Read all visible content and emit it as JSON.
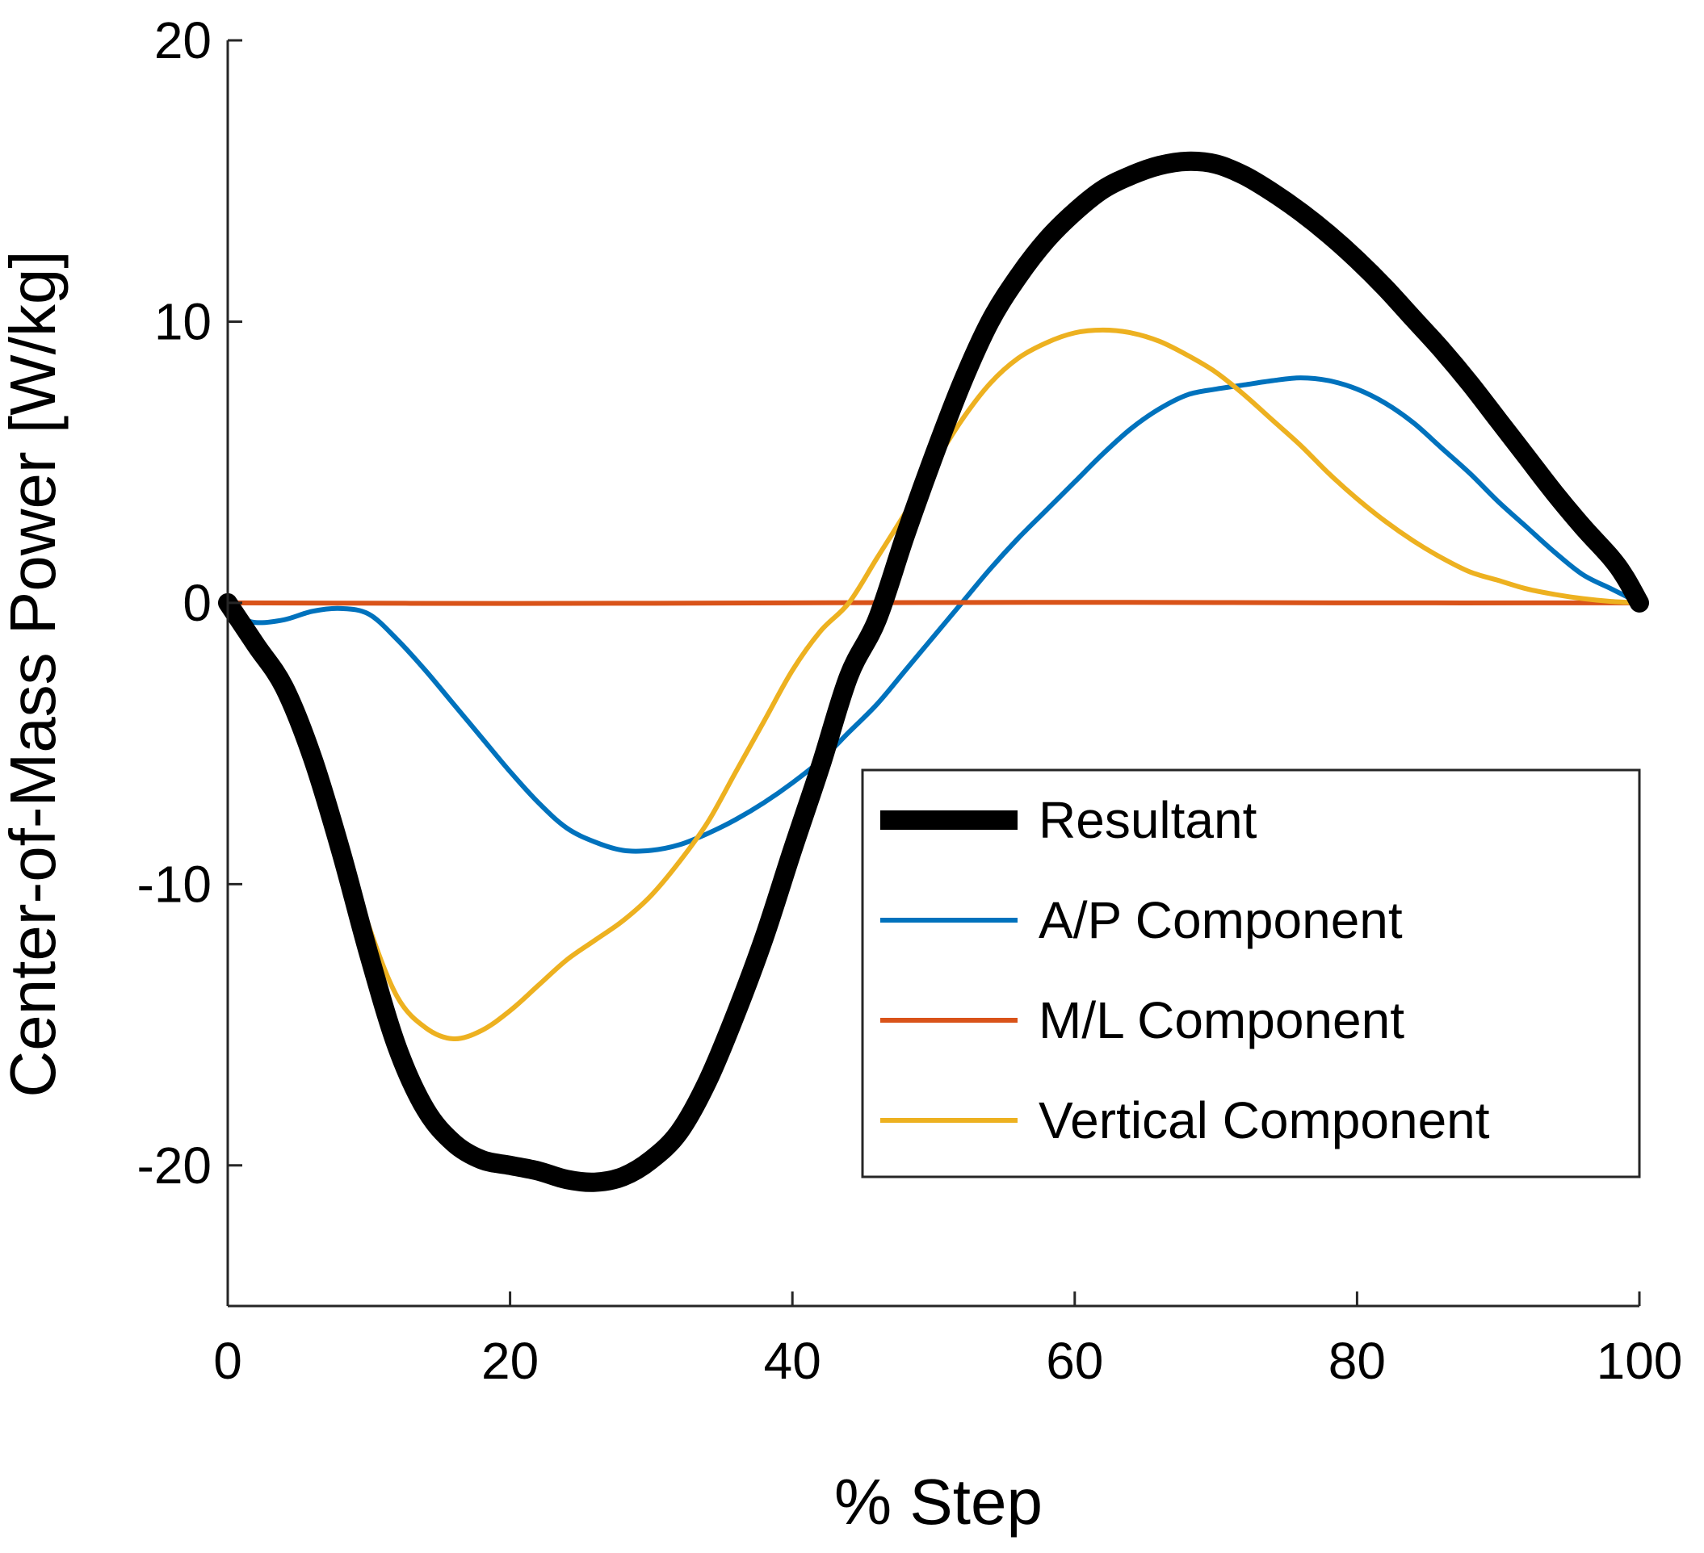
{
  "chart_data": {
    "type": "line",
    "title": "",
    "xlabel": "% Step",
    "ylabel": "Center-of-Mass Power [W/kg]",
    "xlim": [
      0,
      100
    ],
    "ylim": [
      -25,
      20
    ],
    "xticks": [
      0,
      20,
      40,
      60,
      80,
      100
    ],
    "yticks": [
      -20,
      -10,
      0,
      10,
      20
    ],
    "xtick_labels": [
      "0",
      "20",
      "40",
      "60",
      "80",
      "100"
    ],
    "ytick_labels": [
      "-20",
      "-10",
      "0",
      "10",
      "20"
    ],
    "grid": false,
    "legend_position": "bottom-right",
    "series": [
      {
        "name": "Resultant",
        "color": "#000000",
        "style": "thick",
        "points": [
          [
            0,
            0
          ],
          [
            2,
            -1.5
          ],
          [
            4,
            -3
          ],
          [
            6,
            -5.5
          ],
          [
            8,
            -8.8
          ],
          [
            10,
            -12.5
          ],
          [
            12,
            -15.8
          ],
          [
            14,
            -18
          ],
          [
            16,
            -19.2
          ],
          [
            18,
            -19.8
          ],
          [
            20,
            -20
          ],
          [
            22,
            -20.2
          ],
          [
            24,
            -20.5
          ],
          [
            26,
            -20.6
          ],
          [
            28,
            -20.4
          ],
          [
            30,
            -19.8
          ],
          [
            32,
            -18.8
          ],
          [
            34,
            -17
          ],
          [
            36,
            -14.6
          ],
          [
            38,
            -11.9
          ],
          [
            40,
            -8.8
          ],
          [
            42,
            -5.8
          ],
          [
            44,
            -2.6
          ],
          [
            46,
            -0.6
          ],
          [
            48,
            2.4
          ],
          [
            50,
            5.2
          ],
          [
            52,
            7.8
          ],
          [
            54,
            10
          ],
          [
            56,
            11.6
          ],
          [
            58,
            12.9
          ],
          [
            60,
            13.9
          ],
          [
            62,
            14.7
          ],
          [
            64,
            15.2
          ],
          [
            66,
            15.55
          ],
          [
            68,
            15.7
          ],
          [
            70,
            15.6
          ],
          [
            72,
            15.2
          ],
          [
            74,
            14.6
          ],
          [
            76,
            13.9
          ],
          [
            78,
            13.1
          ],
          [
            80,
            12.2
          ],
          [
            82,
            11.2
          ],
          [
            84,
            10.1
          ],
          [
            86,
            9
          ],
          [
            88,
            7.8
          ],
          [
            90,
            6.5
          ],
          [
            92,
            5.2
          ],
          [
            94,
            3.9
          ],
          [
            96,
            2.7
          ],
          [
            98,
            1.6
          ],
          [
            99,
            0.9
          ],
          [
            100,
            0
          ]
        ]
      },
      {
        "name": "A/P Component",
        "color": "#0072BD",
        "style": "thin",
        "points": [
          [
            0,
            0
          ],
          [
            1,
            -0.5
          ],
          [
            2,
            -0.7
          ],
          [
            4,
            -0.6
          ],
          [
            6,
            -0.3
          ],
          [
            8,
            -0.2
          ],
          [
            10,
            -0.4
          ],
          [
            12,
            -1.3
          ],
          [
            14,
            -2.4
          ],
          [
            16,
            -3.6
          ],
          [
            18,
            -4.8
          ],
          [
            20,
            -6
          ],
          [
            22,
            -7.1
          ],
          [
            24,
            -8
          ],
          [
            26,
            -8.5
          ],
          [
            28,
            -8.8
          ],
          [
            30,
            -8.8
          ],
          [
            32,
            -8.6
          ],
          [
            34,
            -8.2
          ],
          [
            36,
            -7.7
          ],
          [
            38,
            -7.1
          ],
          [
            40,
            -6.4
          ],
          [
            42,
            -5.6
          ],
          [
            44,
            -4.6
          ],
          [
            46,
            -3.6
          ],
          [
            48,
            -2.4
          ],
          [
            50,
            -1.2
          ],
          [
            52,
            0
          ],
          [
            54,
            1.2
          ],
          [
            56,
            2.3
          ],
          [
            58,
            3.3
          ],
          [
            60,
            4.3
          ],
          [
            62,
            5.3
          ],
          [
            64,
            6.2
          ],
          [
            66,
            6.9
          ],
          [
            68,
            7.4
          ],
          [
            70,
            7.6
          ],
          [
            72,
            7.75
          ],
          [
            74,
            7.9
          ],
          [
            76,
            8
          ],
          [
            78,
            7.9
          ],
          [
            80,
            7.6
          ],
          [
            82,
            7.1
          ],
          [
            84,
            6.4
          ],
          [
            86,
            5.5
          ],
          [
            88,
            4.6
          ],
          [
            90,
            3.6
          ],
          [
            92,
            2.7
          ],
          [
            94,
            1.8
          ],
          [
            96,
            1
          ],
          [
            98,
            0.5
          ],
          [
            100,
            0
          ]
        ]
      },
      {
        "name": "M/L Component",
        "color": "#D95319",
        "style": "thin",
        "points": [
          [
            0,
            0
          ],
          [
            20,
            -0.02
          ],
          [
            40,
            0
          ],
          [
            60,
            0.02
          ],
          [
            80,
            0
          ],
          [
            100,
            0
          ]
        ]
      },
      {
        "name": "Vertical Component",
        "color": "#EDB120",
        "style": "thin",
        "points": [
          [
            0,
            0
          ],
          [
            2,
            -1.2
          ],
          [
            4,
            -2.8
          ],
          [
            6,
            -5.2
          ],
          [
            8,
            -8.2
          ],
          [
            10,
            -11.5
          ],
          [
            12,
            -14
          ],
          [
            14,
            -15.1
          ],
          [
            16,
            -15.5
          ],
          [
            18,
            -15.2
          ],
          [
            20,
            -14.5
          ],
          [
            22,
            -13.6
          ],
          [
            24,
            -12.7
          ],
          [
            26,
            -12
          ],
          [
            28,
            -11.3
          ],
          [
            30,
            -10.4
          ],
          [
            32,
            -9.2
          ],
          [
            34,
            -7.8
          ],
          [
            36,
            -6
          ],
          [
            38,
            -4.2
          ],
          [
            40,
            -2.4
          ],
          [
            42,
            -1
          ],
          [
            44,
            0
          ],
          [
            46,
            1.6
          ],
          [
            48,
            3.2
          ],
          [
            50,
            4.9
          ],
          [
            52,
            6.5
          ],
          [
            54,
            7.8
          ],
          [
            56,
            8.7
          ],
          [
            58,
            9.25
          ],
          [
            60,
            9.6
          ],
          [
            62,
            9.7
          ],
          [
            64,
            9.6
          ],
          [
            66,
            9.3
          ],
          [
            68,
            8.8
          ],
          [
            70,
            8.2
          ],
          [
            72,
            7.4
          ],
          [
            74,
            6.5
          ],
          [
            76,
            5.6
          ],
          [
            78,
            4.6
          ],
          [
            80,
            3.7
          ],
          [
            82,
            2.9
          ],
          [
            84,
            2.2
          ],
          [
            86,
            1.6
          ],
          [
            88,
            1.1
          ],
          [
            90,
            0.8
          ],
          [
            92,
            0.5
          ],
          [
            94,
            0.3
          ],
          [
            96,
            0.15
          ],
          [
            98,
            0.05
          ],
          [
            100,
            0
          ]
        ]
      }
    ]
  }
}
